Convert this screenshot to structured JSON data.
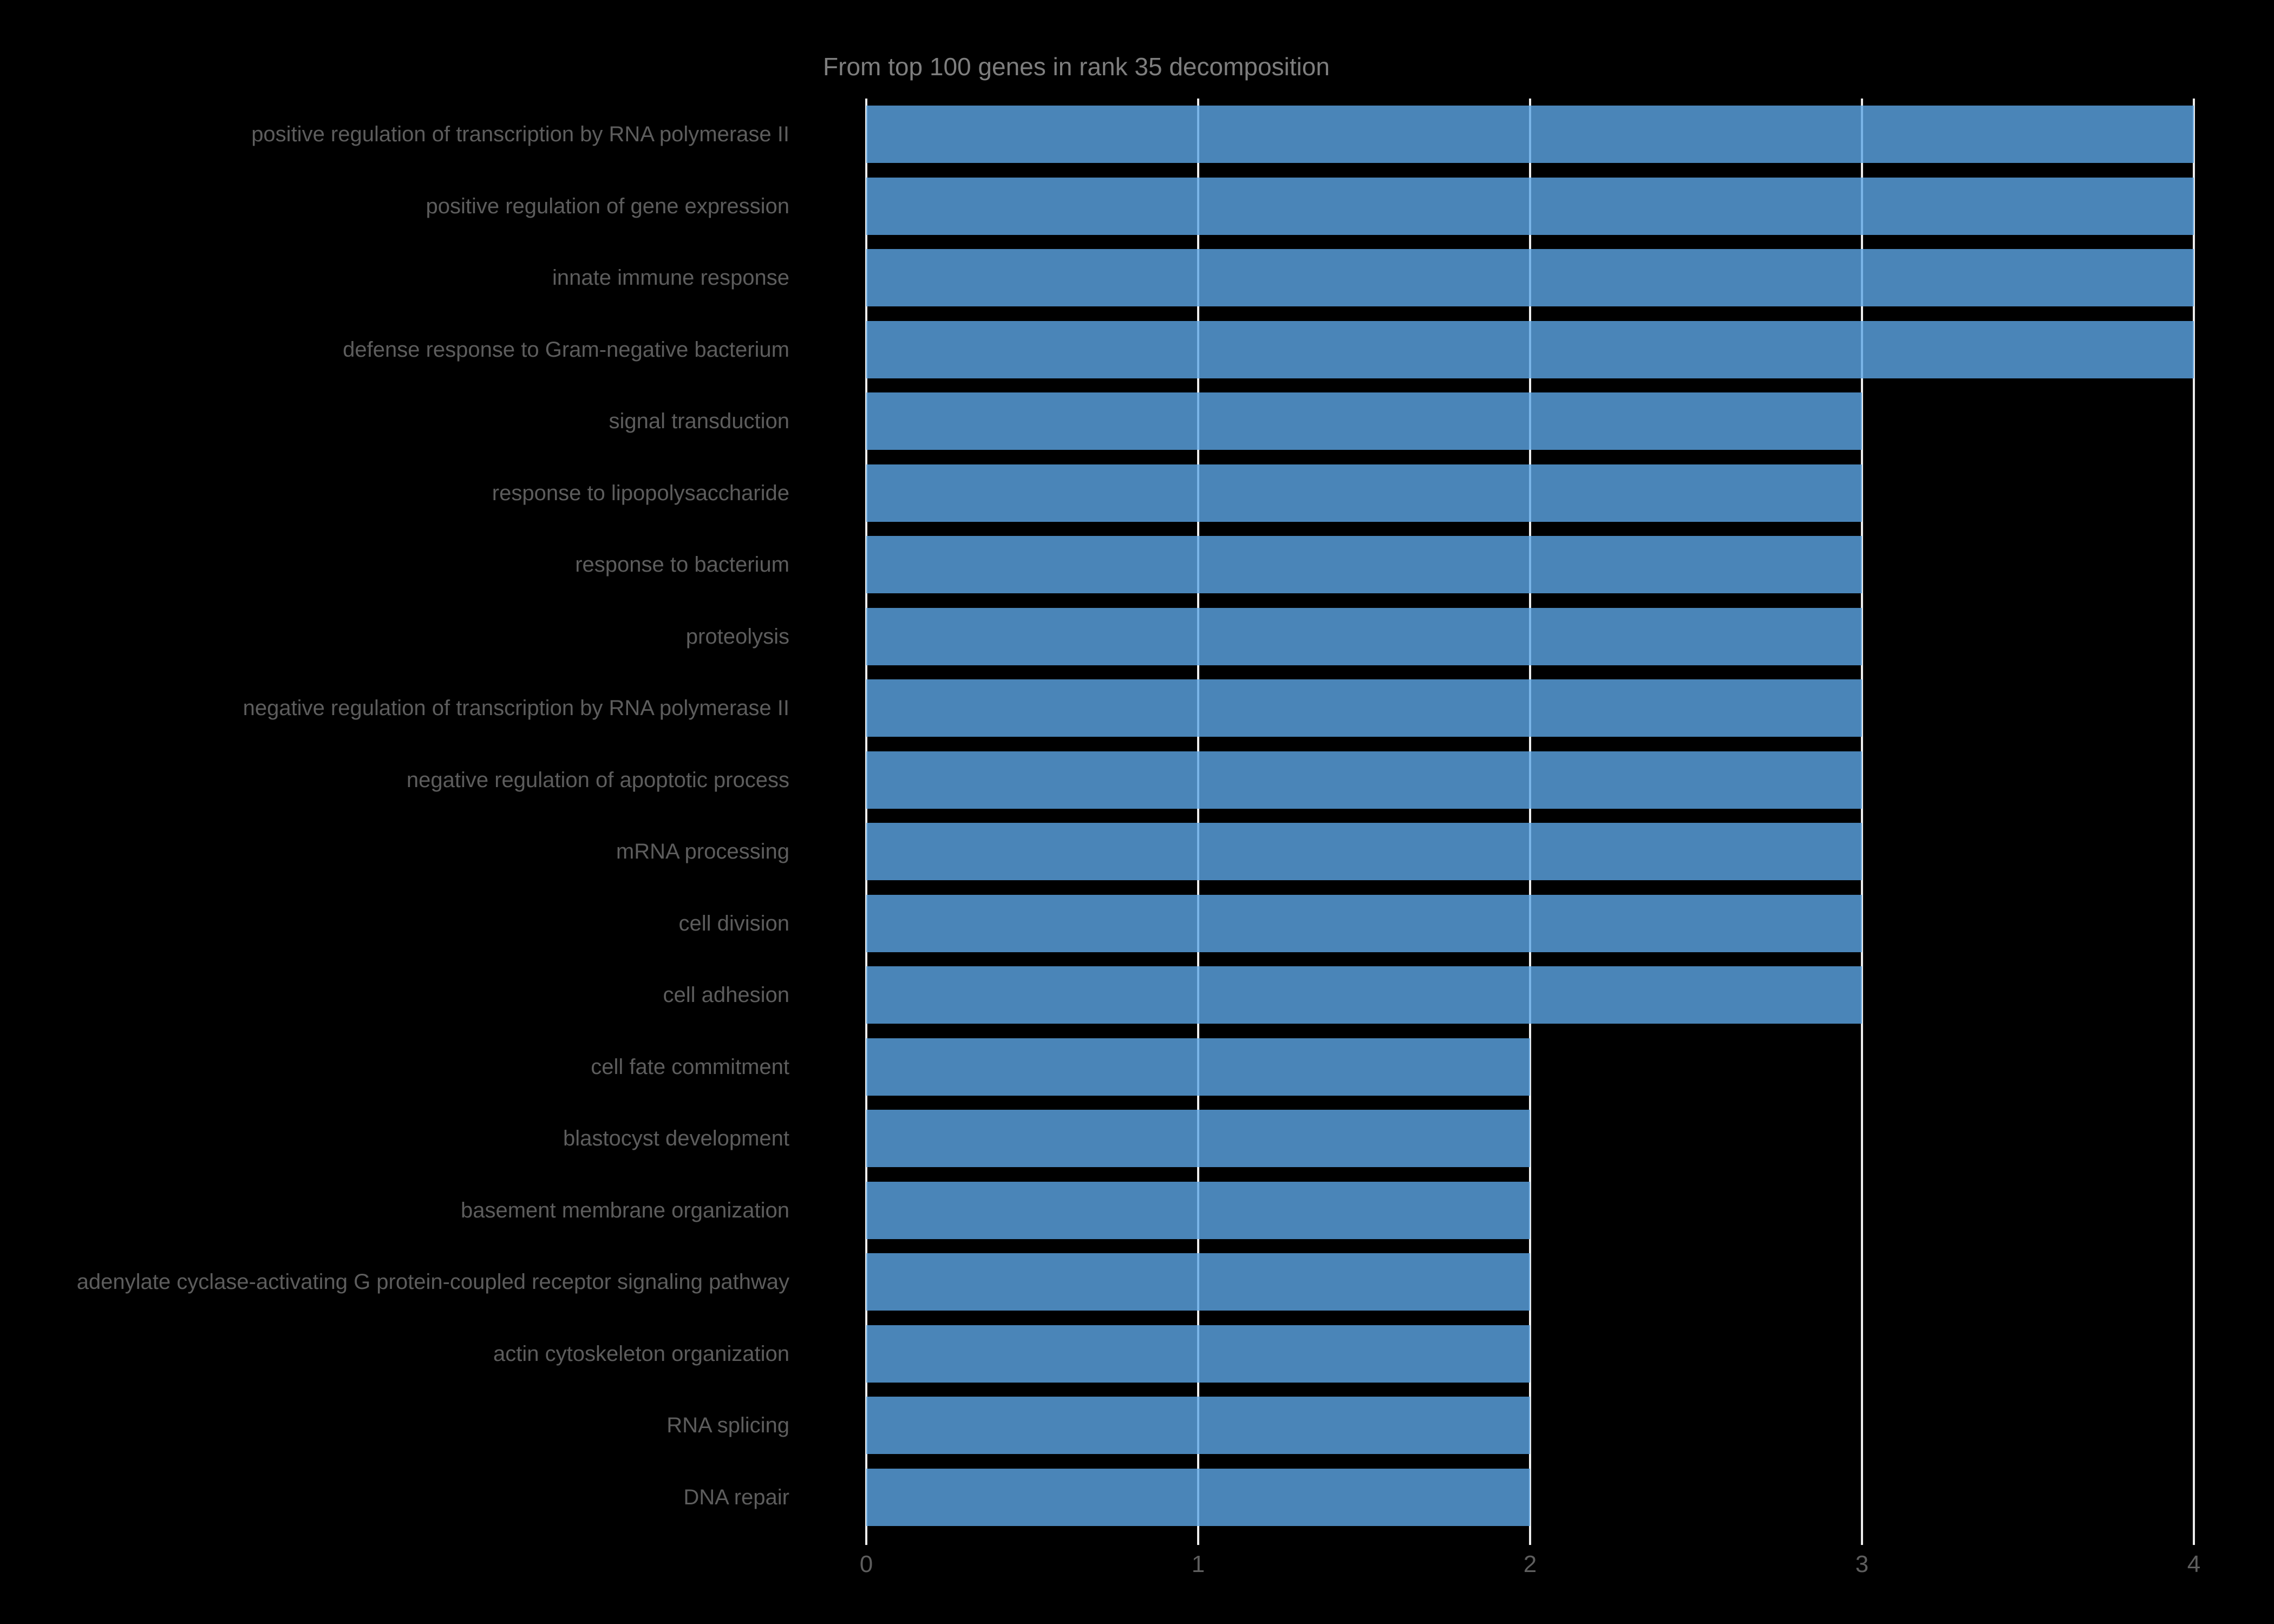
{
  "chart_data": {
    "type": "bar",
    "orientation": "horizontal",
    "title": "From top 100 genes in rank 35 decomposition",
    "categories": [
      "positive regulation of transcription by RNA polymerase II",
      "positive regulation of gene expression",
      "innate immune response",
      "defense response to Gram-negative bacterium",
      "signal transduction",
      "response to lipopolysaccharide",
      "response to bacterium",
      "proteolysis",
      "negative regulation of transcription by RNA polymerase II",
      "negative regulation of apoptotic process",
      "mRNA processing",
      "cell division",
      "cell adhesion",
      "cell fate commitment",
      "blastocyst development",
      "basement membrane organization",
      "adenylate cyclase-activating G protein-coupled receptor signaling pathway",
      "actin cytoskeleton organization",
      "RNA splicing",
      "DNA repair"
    ],
    "values": [
      4,
      4,
      4,
      4,
      3,
      3,
      3,
      3,
      3,
      3,
      3,
      3,
      3,
      2,
      2,
      2,
      2,
      2,
      2,
      2
    ],
    "xlabel": "",
    "ylabel": "",
    "xlim": [
      0,
      4
    ],
    "xticks": [
      0,
      1,
      2,
      3,
      4
    ],
    "grid": true,
    "legend": false,
    "colors": {
      "background": "#000000",
      "bar_fill": "rgba(93,166,230,0.8)",
      "bar_apparent": "#4a85b8",
      "gridline": "#ececec",
      "title_text": "#7e7e7e",
      "label_text": "#5d5d5d",
      "tick_text": "#5e5e5e"
    }
  }
}
